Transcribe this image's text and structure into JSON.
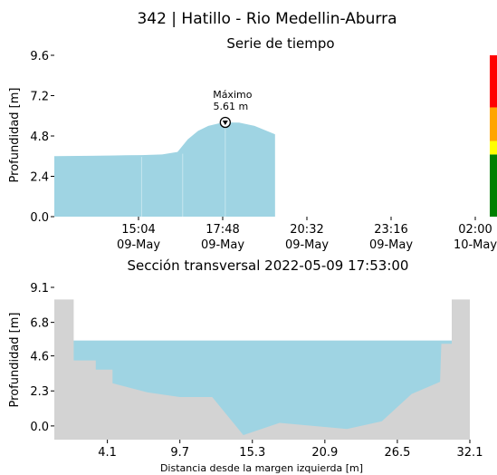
{
  "title": "342 | Hatillo - Rio Medellin-Aburra",
  "chart_data": [
    {
      "type": "area",
      "title": "Serie de tiempo",
      "ylabel": "Profundidad [m]",
      "xlabel": "",
      "ylim": [
        0,
        9.6
      ],
      "yticks": [
        "0.0",
        "2.4",
        "4.8",
        "7.2",
        "9.6"
      ],
      "xticks": [
        {
          "time": "15:04",
          "date": "09-May"
        },
        {
          "time": "17:48",
          "date": "09-May"
        },
        {
          "time": "20:32",
          "date": "09-May"
        },
        {
          "time": "23:16",
          "date": "09-May"
        },
        {
          "time": "02:00",
          "date": "10-May"
        }
      ],
      "xlim": [
        "2022-05-09 12:20",
        "2022-05-10 02:00"
      ],
      "series": [
        {
          "color": "#9fd4e3",
          "points": [
            [
              "2022-05-09 12:20",
              3.6
            ],
            [
              "2022-05-09 13:30",
              3.62
            ],
            [
              "2022-05-09 14:40",
              3.65
            ],
            [
              "2022-05-09 15:10",
              3.66
            ],
            [
              "2022-05-09 15:50",
              3.7
            ],
            [
              "2022-05-09 16:20",
              3.85
            ],
            [
              "2022-05-09 16:40",
              4.6
            ],
            [
              "2022-05-09 17:00",
              5.1
            ],
            [
              "2022-05-09 17:20",
              5.4
            ],
            [
              "2022-05-09 17:45",
              5.58
            ],
            [
              "2022-05-09 17:53",
              5.61
            ],
            [
              "2022-05-09 18:20",
              5.6
            ],
            [
              "2022-05-09 18:50",
              5.4
            ],
            [
              "2022-05-09 19:10",
              5.15
            ],
            [
              "2022-05-09 19:30",
              4.9
            ]
          ]
        }
      ],
      "annotation": {
        "label": "Máximo",
        "value_text": "5.61 m",
        "time": "2022-05-09 17:53",
        "value": 5.61
      },
      "level_bar": [
        {
          "from": 0.0,
          "to": 3.7,
          "color": "#008000"
        },
        {
          "from": 3.7,
          "to": 4.5,
          "color": "#ffff00"
        },
        {
          "from": 4.5,
          "to": 6.5,
          "color": "#ffa500"
        },
        {
          "from": 6.5,
          "to": 9.6,
          "color": "#ff0000"
        }
      ]
    },
    {
      "type": "area",
      "title": "Sección transversal 2022-05-09 17:53:00",
      "ylabel": "Profundidad [m]",
      "xlabel": "Distancia desde la margen izquierda [m]",
      "ylim": [
        -0.9,
        9.1
      ],
      "xlim": [
        0,
        32.1
      ],
      "yticks": [
        "0.0",
        "2.3",
        "4.6",
        "6.8",
        "9.1"
      ],
      "xticks": [
        "4.1",
        "9.7",
        "15.3",
        "20.9",
        "26.5",
        "32.1"
      ],
      "water_level": 5.61,
      "water_color": "#9fd4e3",
      "ground_color": "#d3d3d3",
      "profile": [
        [
          0,
          8.3
        ],
        [
          1.5,
          8.3
        ],
        [
          1.5,
          4.3
        ],
        [
          3.2,
          4.3
        ],
        [
          3.2,
          3.7
        ],
        [
          4.5,
          3.7
        ],
        [
          4.5,
          2.8
        ],
        [
          7.2,
          2.2
        ],
        [
          9.7,
          1.9
        ],
        [
          12.2,
          1.9
        ],
        [
          14.6,
          -0.6
        ],
        [
          17.4,
          0.2
        ],
        [
          22.6,
          -0.2
        ],
        [
          25.3,
          0.3
        ],
        [
          27.6,
          2.1
        ],
        [
          29.8,
          2.9
        ],
        [
          29.9,
          5.4
        ],
        [
          30.7,
          5.4
        ],
        [
          30.7,
          8.3
        ],
        [
          32.1,
          8.3
        ]
      ]
    }
  ]
}
